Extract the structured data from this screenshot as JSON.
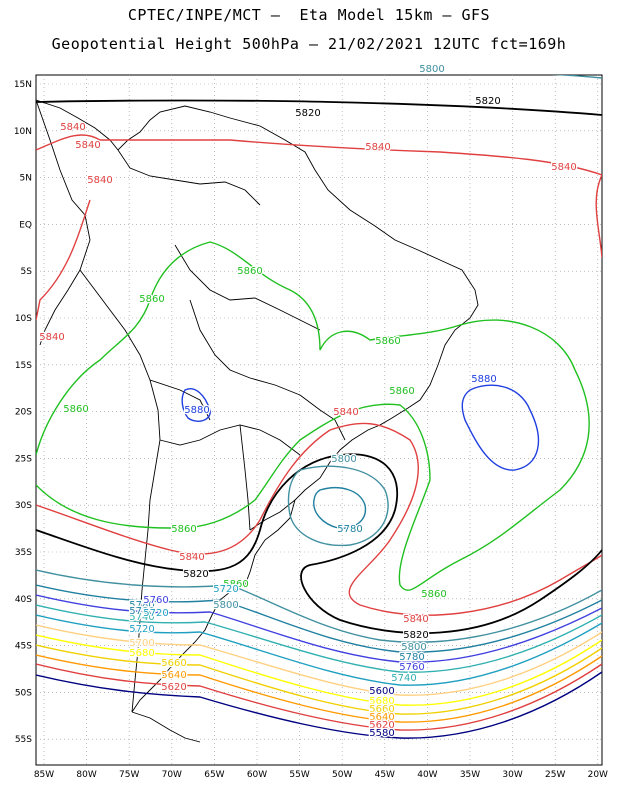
{
  "header": {
    "line1": "CPTEC/INPE/MCT –  Eta Model 15km – GFS",
    "line2": "Geopotential Height 500hPa – 21/02/2021 12UTC fct=169h"
  },
  "axes": {
    "lat_labels": [
      "15N",
      "10N",
      "5N",
      "EQ",
      "5S",
      "10S",
      "15S",
      "20S",
      "25S",
      "30S",
      "35S",
      "40S",
      "45S",
      "50S",
      "55S"
    ],
    "lon_labels": [
      "85W",
      "80W",
      "75W",
      "70W",
      "65W",
      "60W",
      "55W",
      "50W",
      "45W",
      "40W",
      "35W",
      "30W",
      "25W",
      "20W"
    ]
  },
  "contour_colors": {
    "5580": "#000080",
    "5620": "#e04040",
    "5640": "#ff9a00",
    "5660": "#f0d000",
    "5680": "#ffff00",
    "5700": "#ffd080",
    "5720": "#20a0c0",
    "5740": "#30b0b0",
    "5760": "#4040e0",
    "5780": "#2080a0",
    "5800": "#4090a0",
    "5820": "#000000",
    "5840": "#e04040",
    "5860": "#20c020",
    "5880": "#2040e0"
  },
  "contour_labels": [
    {
      "text": "5800",
      "color": "#4090a0"
    },
    {
      "text": "5820",
      "color": "#000000"
    },
    {
      "text": "5820",
      "color": "#000000"
    },
    {
      "text": "5840",
      "color": "#e04040"
    },
    {
      "text": "5840",
      "color": "#e04040"
    },
    {
      "text": "5840",
      "color": "#e04040"
    },
    {
      "text": "5840",
      "color": "#e04040"
    },
    {
      "text": "5840",
      "color": "#e04040"
    },
    {
      "text": "5840",
      "color": "#e04040"
    },
    {
      "text": "5860",
      "color": "#20c020"
    },
    {
      "text": "5860",
      "color": "#20c020"
    },
    {
      "text": "5860",
      "color": "#20c020"
    },
    {
      "text": "5860",
      "color": "#20c020"
    },
    {
      "text": "5860",
      "color": "#20c020"
    },
    {
      "text": "5860",
      "color": "#20c020"
    },
    {
      "text": "5880",
      "color": "#2040e0"
    },
    {
      "text": "5880",
      "color": "#2040e0"
    },
    {
      "text": "5840",
      "color": "#e04040"
    },
    {
      "text": "5800",
      "color": "#4090a0"
    },
    {
      "text": "5780",
      "color": "#2080a0"
    },
    {
      "text": "5860",
      "color": "#20c020"
    },
    {
      "text": "5840",
      "color": "#e04040"
    },
    {
      "text": "5820",
      "color": "#000000"
    },
    {
      "text": "5860",
      "color": "#20c020"
    },
    {
      "text": "5840",
      "color": "#e04040"
    },
    {
      "text": "5820",
      "color": "#000000"
    },
    {
      "text": "5800",
      "color": "#4090a0"
    },
    {
      "text": "5780",
      "color": "#2080a0"
    },
    {
      "text": "5760",
      "color": "#4040e0"
    },
    {
      "text": "5740",
      "color": "#30b0b0"
    },
    {
      "text": "5720",
      "color": "#20a0c0"
    },
    {
      "text": "5800",
      "color": "#4090a0"
    },
    {
      "text": "5780",
      "color": "#2080a0"
    },
    {
      "text": "5740",
      "color": "#30b0b0"
    },
    {
      "text": "5720",
      "color": "#20a0c0"
    },
    {
      "text": "5700",
      "color": "#ffd080"
    },
    {
      "text": "5680",
      "color": "#ffff00"
    },
    {
      "text": "5660",
      "color": "#f0d000"
    },
    {
      "text": "5640",
      "color": "#ff9a00"
    },
    {
      "text": "5620",
      "color": "#e04040"
    },
    {
      "text": "5600",
      "color": "#000080"
    },
    {
      "text": "5760",
      "color": "#4040e0"
    },
    {
      "text": "5780",
      "color": "#2080a0"
    },
    {
      "text": "5720",
      "color": "#20a0c0"
    },
    {
      "text": "5680",
      "color": "#ffff00"
    },
    {
      "text": "5660",
      "color": "#f0d000"
    },
    {
      "text": "5640",
      "color": "#ff9a00"
    },
    {
      "text": "5620",
      "color": "#e04040"
    },
    {
      "text": "5580",
      "color": "#000080"
    }
  ]
}
